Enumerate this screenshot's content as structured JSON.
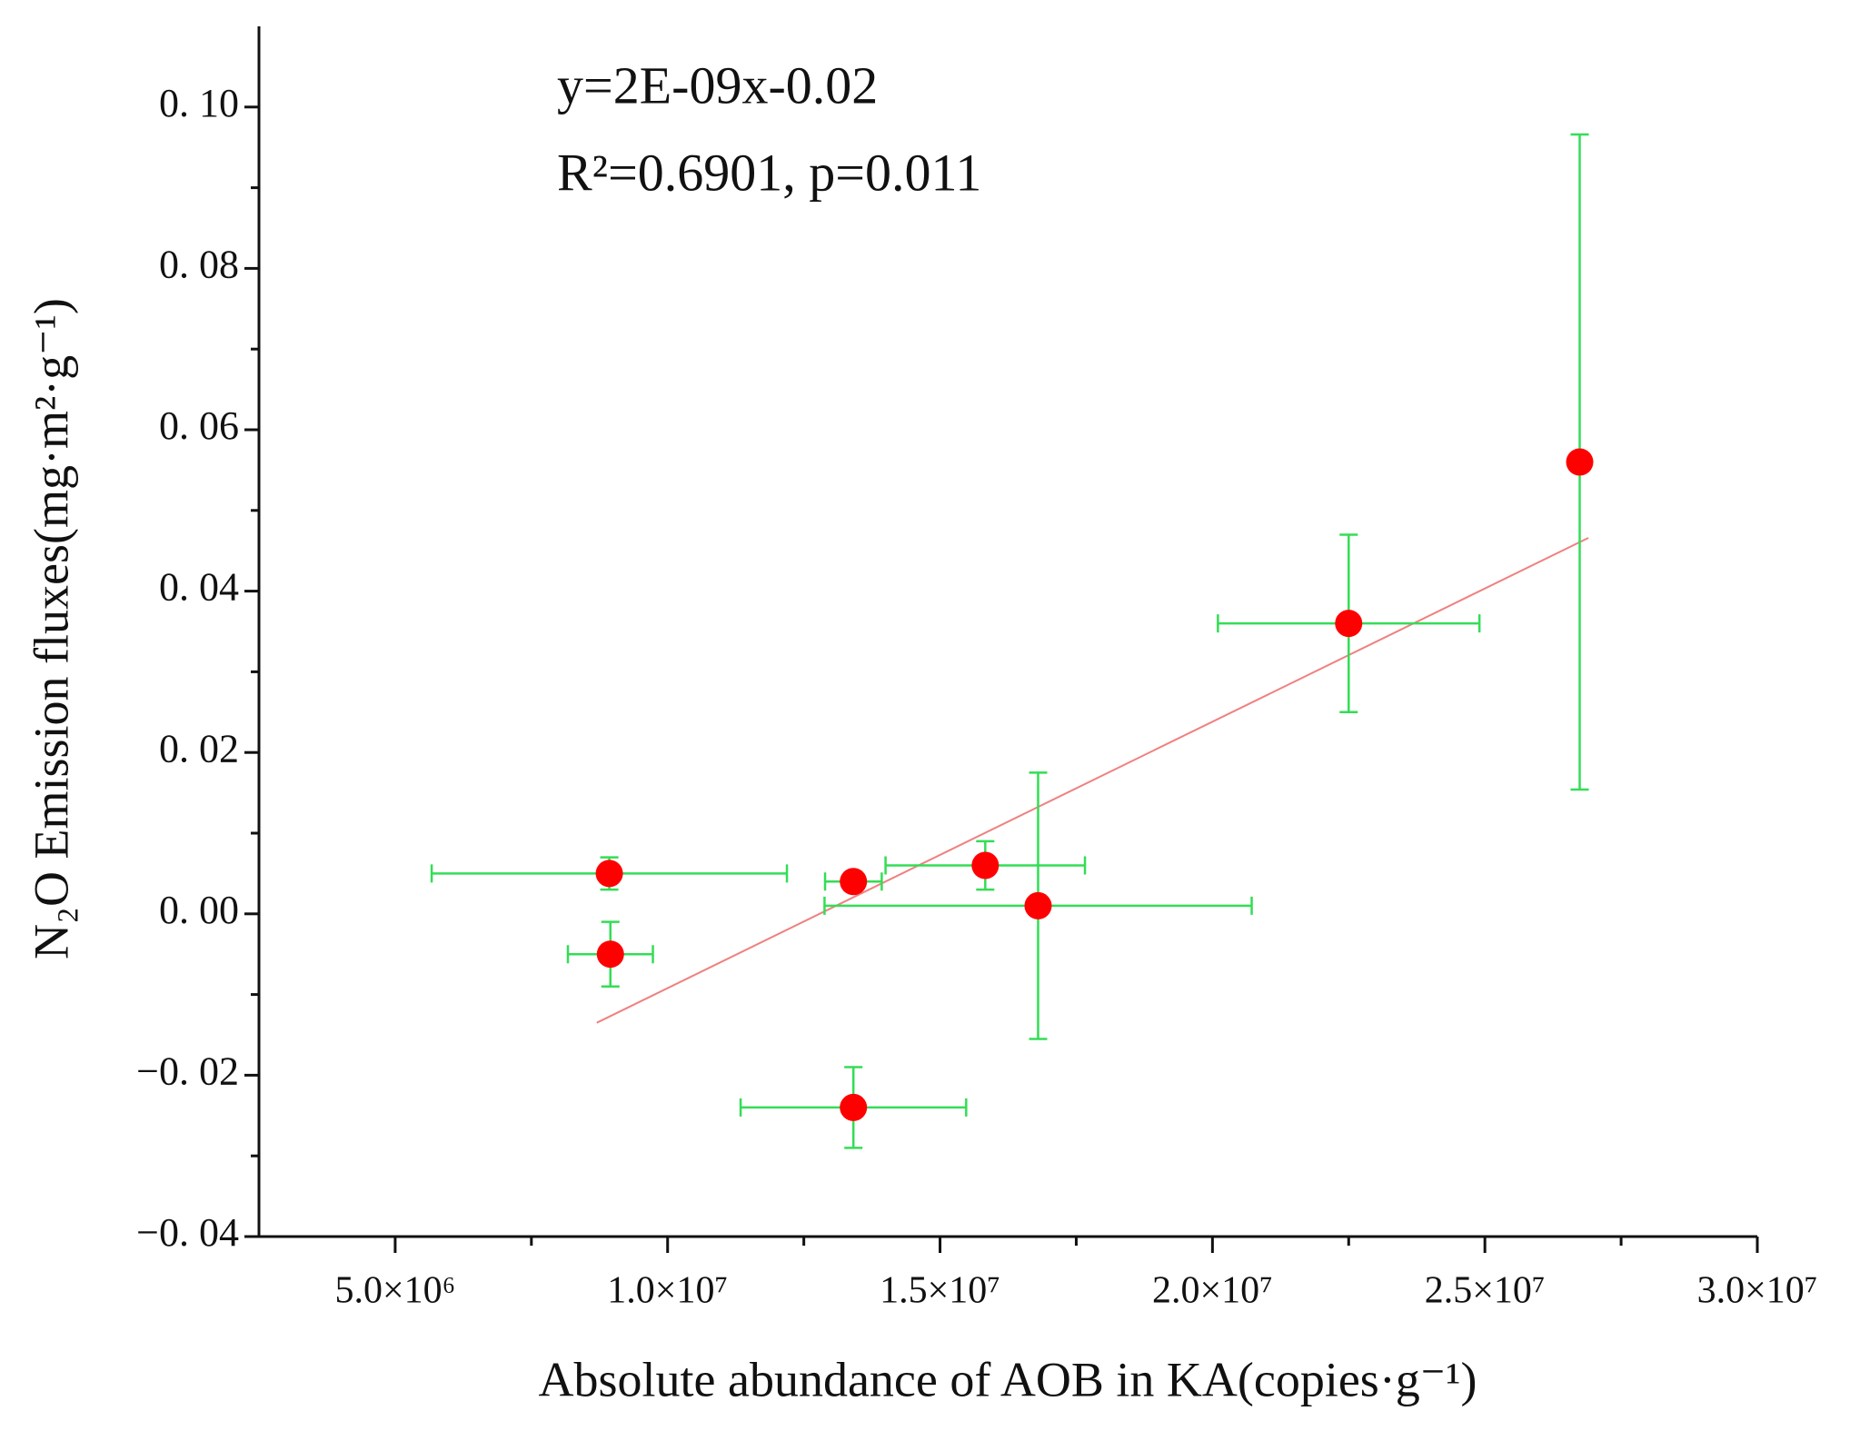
{
  "chart_data": {
    "type": "scatter",
    "xlabel": "Absolute abundance of AOB in KA(copies·g⁻¹)",
    "ylabel": "N₂O Emission fluxes(mg·m²·g⁻¹)",
    "annotations": [
      "y=2E-09x-0.02",
      "R²=0.6901, p=0.011"
    ],
    "xlim": [
      2500000,
      30000000
    ],
    "xticks": [
      {
        "value": 5000000,
        "label": "5.0×10⁶"
      },
      {
        "value": 10000000,
        "label": "1.0×10⁷"
      },
      {
        "value": 15000000,
        "label": "1.5×10⁷"
      },
      {
        "value": 20000000,
        "label": "2.0×10⁷"
      },
      {
        "value": 25000000,
        "label": "2.5×10⁷"
      },
      {
        "value": 30000000,
        "label": "3.0×10⁷"
      }
    ],
    "xminor": [
      7500000,
      12500000,
      17500000,
      22500000,
      27500000
    ],
    "ylim": [
      -0.04,
      0.11
    ],
    "yticks": [
      {
        "value": -0.04,
        "label": "−0. 04"
      },
      {
        "value": -0.02,
        "label": "−0. 02"
      },
      {
        "value": 0,
        "label": "0. 00"
      },
      {
        "value": 0.02,
        "label": "0. 02"
      },
      {
        "value": 0.04,
        "label": "0. 04"
      },
      {
        "value": 0.06,
        "label": "0. 06"
      },
      {
        "value": 0.08,
        "label": "0. 08"
      },
      {
        "value": 0.1,
        "label": "0. 10"
      }
    ],
    "yminor": [
      -0.03,
      -0.01,
      0.01,
      0.03,
      0.05,
      0.07,
      0.09
    ],
    "series": [
      {
        "color": "#ff0000",
        "error_color": "#33dd55",
        "x": [
          8930000,
          8950000,
          13410000,
          13410000,
          15830000,
          16800000,
          22500000,
          26740000
        ],
        "y": [
          0.005,
          -0.005,
          0.004,
          -0.024,
          0.006,
          0.001,
          0.036,
          0.056
        ],
        "xerr": [
          3260000,
          780000,
          520000,
          2070000,
          1830000,
          3920000,
          2400000,
          0
        ],
        "yerr": [
          0.002,
          0.004,
          0.001,
          0.005,
          0.003,
          0.0165,
          0.011,
          0.0406
        ]
      }
    ],
    "fit": {
      "color": "#f08080",
      "x": [
        8700000,
        26900000
      ],
      "y": [
        -0.0135,
        0.0466
      ]
    }
  }
}
